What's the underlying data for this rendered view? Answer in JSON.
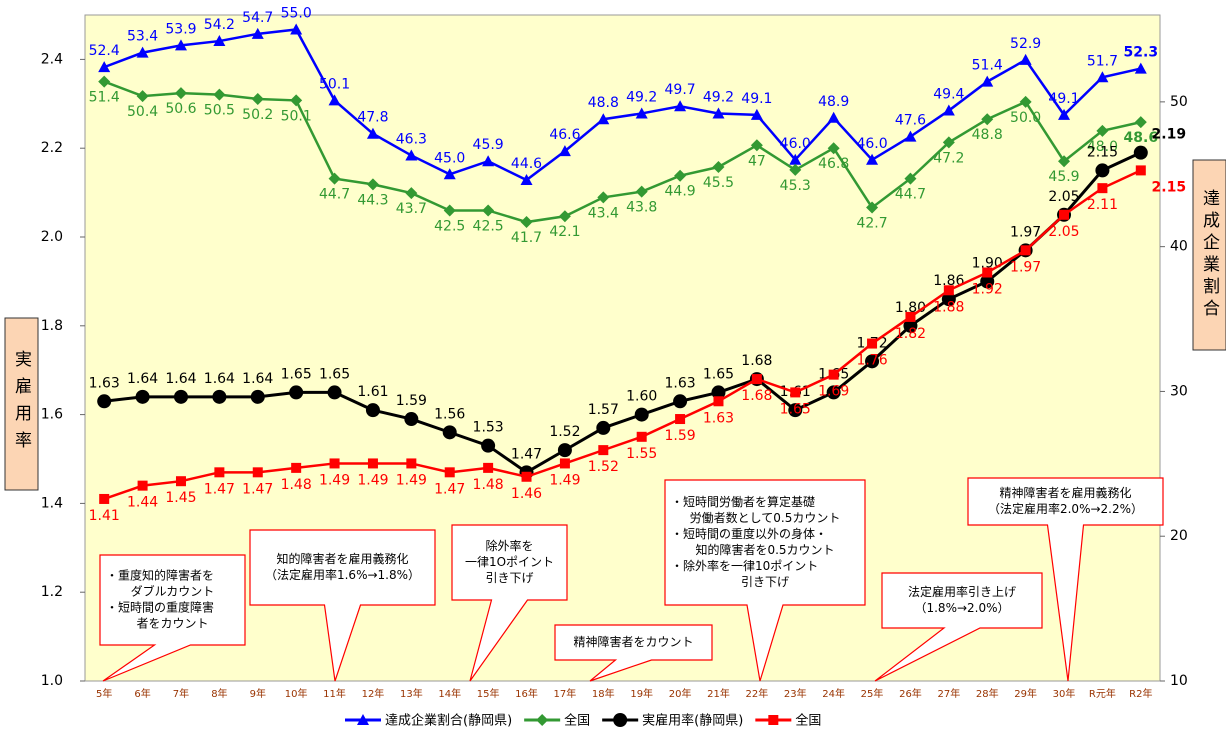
{
  "chart_data": {
    "type": "line",
    "categories": [
      "5年",
      "6年",
      "7年",
      "8年",
      "9年",
      "10年",
      "11年",
      "12年",
      "13年",
      "14年",
      "15年",
      "16年",
      "17年",
      "18年",
      "19年",
      "20年",
      "21年",
      "22年",
      "23年",
      "24年",
      "25年",
      "26年",
      "27年",
      "28年",
      "29年",
      "30年",
      "R元年",
      "R2年"
    ],
    "ylim": [
      1.0,
      2.5
    ],
    "yticks": [
      {
        "value": 1.0,
        "label": "1.0"
      },
      1.2,
      1.4,
      1.6,
      1.8,
      {
        "value": 2.0,
        "label": "2.0"
      },
      2.2,
      2.4
    ],
    "y2lim": [
      10,
      56
    ],
    "y2ticks": [
      10,
      20,
      30,
      40,
      50
    ],
    "ylabel": "実雇用率",
    "y2label": "達成企業割合",
    "series": [
      {
        "name": "達成企業割合(静岡県)",
        "color": "#0000ff",
        "marker": "triangle",
        "axis": "y2",
        "values": [
          52.4,
          53.4,
          53.9,
          54.2,
          54.7,
          55.0,
          50.1,
          47.8,
          46.3,
          45.0,
          45.9,
          44.6,
          46.6,
          48.8,
          49.2,
          49.7,
          49.2,
          49.1,
          46.0,
          48.9,
          46.0,
          47.6,
          49.4,
          51.4,
          52.9,
          49.1,
          51.7,
          52.3
        ],
        "value_labels": [
          "52.4",
          "53.4",
          "53.9",
          "54.2",
          "54.7",
          "55.0",
          "50.1",
          "47.8",
          "46.3",
          "45.0",
          "45.9",
          "44.6",
          "46.6",
          "48.8",
          "49.2",
          "49.7",
          "49.2",
          "49.1",
          "46.0",
          "48.9",
          "46.0",
          "47.6",
          "49.4",
          "51.4",
          "52.9",
          "49.1",
          "51.7",
          "52.3"
        ]
      },
      {
        "name": "全国",
        "color": "#339933",
        "marker": "diamond",
        "axis": "y2",
        "values": [
          51.4,
          50.4,
          50.6,
          50.5,
          50.2,
          50.1,
          44.7,
          44.3,
          43.7,
          42.5,
          42.5,
          41.7,
          42.1,
          43.4,
          43.8,
          44.9,
          45.5,
          47,
          45.3,
          46.8,
          42.7,
          44.7,
          47.2,
          48.8,
          50.0,
          45.9,
          48.0,
          48.6
        ],
        "value_labels": [
          "51.4",
          "50.4",
          "50.6",
          "50.5",
          "50.2",
          "50.1",
          "44.7",
          "44.3",
          "43.7",
          "42.5",
          "42.5",
          "41.7",
          "42.1",
          "43.4",
          "43.8",
          "44.9",
          "45.5",
          "47",
          "45.3",
          "46.8",
          "42.7",
          "44.7",
          "47.2",
          "48.8",
          "50.0",
          "45.9",
          "48.0",
          "48.6"
        ]
      },
      {
        "name": "実雇用率(静岡県)",
        "color": "#000000",
        "marker": "circle",
        "values": [
          1.63,
          1.64,
          1.64,
          1.64,
          1.64,
          1.65,
          1.65,
          1.61,
          1.59,
          1.56,
          1.53,
          1.47,
          1.52,
          1.57,
          1.6,
          1.63,
          1.65,
          1.68,
          1.61,
          1.65,
          1.72,
          1.8,
          1.86,
          1.9,
          1.97,
          2.05,
          2.15,
          2.19
        ],
        "value_labels": [
          "1.63",
          "1.64",
          "1.64",
          "1.64",
          "1.64",
          "1.65",
          "1.65",
          "1.61",
          "1.59",
          "1.56",
          "1.53",
          "1.47",
          "1.52",
          "1.57",
          "1.60",
          "1.63",
          "1.65",
          "1.68",
          "1.61",
          "1.65",
          "1.72",
          "1.80",
          "1.86",
          "1.90",
          "1.97",
          "2.05",
          "2.15",
          "2.19"
        ]
      },
      {
        "name": "全国",
        "color": "#ff0000",
        "marker": "square",
        "values": [
          1.41,
          1.44,
          1.45,
          1.47,
          1.47,
          1.48,
          1.49,
          1.49,
          1.49,
          1.47,
          1.48,
          1.46,
          1.49,
          1.52,
          1.55,
          1.59,
          1.63,
          1.68,
          1.65,
          1.69,
          1.76,
          1.82,
          1.88,
          1.92,
          1.97,
          2.05,
          2.11,
          2.15
        ],
        "value_labels": [
          "1.41",
          "1.44",
          "1.45",
          "1.47",
          "1.47",
          "1.48",
          "1.49",
          "1.49",
          "1.49",
          "1.47",
          "1.48",
          "1.46",
          "1.49",
          "1.52",
          "1.55",
          "1.59",
          "1.63",
          "1.68",
          "1.65",
          "1.69",
          "1.76",
          "1.82",
          "1.88",
          "1.92",
          "1.97",
          "2.05",
          "2.11",
          "2.15"
        ]
      }
    ],
    "annotations": [
      {
        "lines": [
          "・重度知的障害者を",
          "ダブルカウント",
          "・短時間の重度障害",
          "者をカウント"
        ]
      },
      {
        "lines": [
          "知的障害者を雇用義務化",
          "（法定雇用率1.6%→1.8%）"
        ]
      },
      {
        "lines": [
          "除外率を",
          "一律1Oポイント",
          "引き下げ"
        ]
      },
      {
        "lines": [
          "精神障害者をカウント"
        ]
      },
      {
        "lines": [
          "・短時間労働者を算定基礎",
          "労働者数として0.5カウント",
          "・短時間の重度以外の身体・",
          "知的障害者を0.5カウント",
          "・除外率を一律10ポイント",
          "引き下げ"
        ]
      },
      {
        "lines": [
          "法定雇用率引き上げ",
          "（1.8%→2.0%）"
        ]
      },
      {
        "lines": [
          "精神障害者を雇用義務化",
          "（法定雇用率2.0%→2.2%）"
        ]
      }
    ]
  }
}
